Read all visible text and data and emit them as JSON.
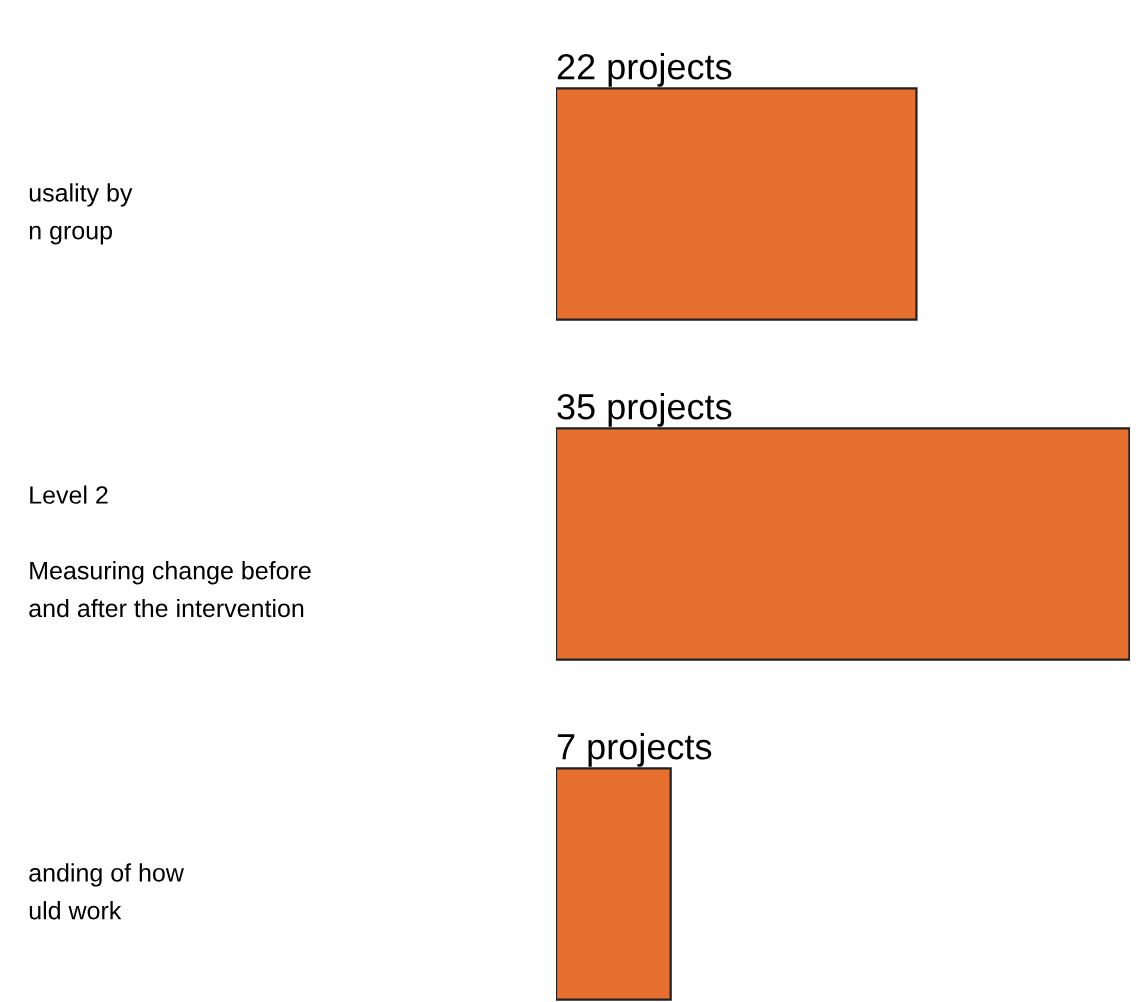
{
  "chart_data": {
    "type": "bar",
    "orientation": "horizontal",
    "categories": [
      "usality by\nn group",
      "Level 2\n\nMeasuring change before\nand after the intervention",
      "anding of how\nuld work"
    ],
    "values": [
      22,
      35,
      7
    ],
    "value_labels": [
      "22 projects",
      "35 projects",
      "7 projects"
    ],
    "color": "#e8702e",
    "grid": false,
    "legend": false
  }
}
